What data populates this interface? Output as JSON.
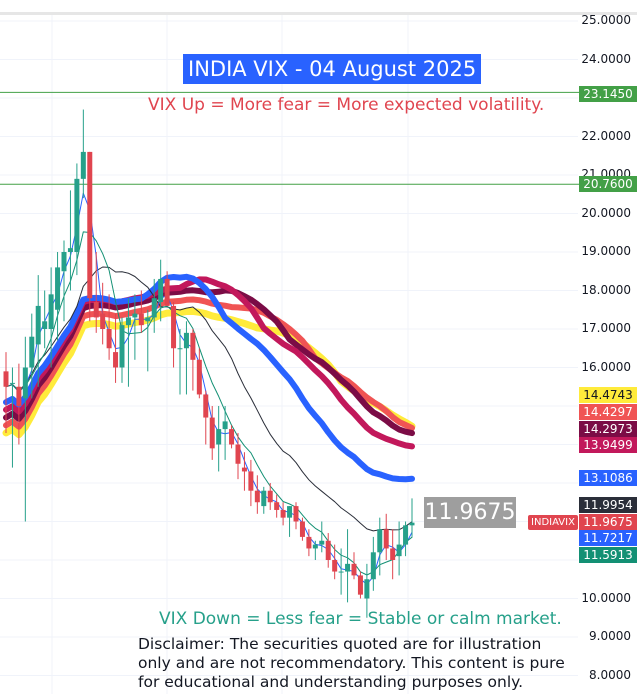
{
  "title": "INDIA VIX - 04 August 2025",
  "annotations": {
    "up_note": "VIX Up = More fear = More expected volatility.",
    "down_note": "VIX Down = Less fear = Stable or calm market.",
    "disclaimer_lines": [
      "Disclaimer: The securities quoted are for illustration",
      "only and are not recommendatory. This content is pure",
      "for educational and understanding purposes only."
    ]
  },
  "symbol": "INDIAVIX",
  "last_price": "11.9675",
  "price_axis": {
    "ticks": [
      "25.0000",
      "24.0000",
      "22.0000",
      "21.0000",
      "20.0000",
      "19.0000",
      "18.0000",
      "17.0000",
      "16.0000",
      "10.0000",
      "9.0000",
      "8.0000"
    ]
  },
  "price_tags": [
    {
      "label": "23.1450",
      "color": "#43a047",
      "text_color": "#ffffff",
      "name": "resistance-level-tag"
    },
    {
      "label": "20.7600",
      "color": "#43a047",
      "text_color": "#ffffff",
      "name": "support-level-tag"
    },
    {
      "label": "14.4743",
      "color": "#ffeb3b",
      "text_color": "#131722",
      "name": "ma-yellow-tag"
    },
    {
      "label": "14.4297",
      "color": "#f05454",
      "text_color": "#ffffff",
      "name": "ma-coral-tag"
    },
    {
      "label": "14.2973",
      "color": "#7b0c46",
      "text_color": "#ffffff",
      "name": "ma-darkmaroon-tag"
    },
    {
      "label": "13.9499",
      "color": "#c2185b",
      "text_color": "#ffffff",
      "name": "ma-crimson-tag"
    },
    {
      "label": "13.1086",
      "color": "#2962ff",
      "text_color": "#ffffff",
      "name": "ma-blue-tag"
    },
    {
      "label": "11.9954",
      "color": "#2a2e39",
      "text_color": "#ffffff",
      "name": "ma-black-tag"
    },
    {
      "label": "11.9675",
      "color": "#e0454f",
      "text_color": "#ffffff",
      "name": "last-price-tag"
    },
    {
      "label": "11.7217",
      "color": "#2962ff",
      "text_color": "#ffffff",
      "name": "ma-thin-blue-tag"
    },
    {
      "label": "11.5913",
      "color": "#139074",
      "text_color": "#ffffff",
      "name": "ma-teal-tag"
    }
  ],
  "colors": {
    "up_candle": "#26a08a",
    "down_candle": "#e0454f",
    "horizontal_line": "#43a047",
    "grid": "#f0f3fa"
  },
  "chart_data": {
    "type": "candlestick",
    "title": "INDIA VIX - 04 August 2025",
    "xlabel": "",
    "ylabel": "",
    "ylim": [
      7.6,
      25.5
    ],
    "grid": true,
    "legend": "price-scale tags on right axis",
    "horizontal_levels": [
      23.145,
      20.76
    ],
    "last_value": 11.9675,
    "moving_averages_last": {
      "yellow": 14.4743,
      "coral": 14.4297,
      "dark_maroon": 14.2973,
      "crimson": 13.9499,
      "thick_blue": 13.1086,
      "black_thin": 11.9954,
      "thin_blue": 11.7217,
      "teal_thin": 11.5913
    },
    "candles": [
      {
        "o": 15.9,
        "h": 16.4,
        "l": 14.3,
        "c": 15.5
      },
      {
        "o": 15.6,
        "h": 16.0,
        "l": 13.4,
        "c": 15.6
      },
      {
        "o": 15.5,
        "h": 16.1,
        "l": 14.0,
        "c": 15.0
      },
      {
        "o": 15.2,
        "h": 16.8,
        "l": 12.0,
        "c": 16.0
      },
      {
        "o": 16.0,
        "h": 17.4,
        "l": 15.2,
        "c": 16.8
      },
      {
        "o": 16.6,
        "h": 18.4,
        "l": 15.5,
        "c": 17.6
      },
      {
        "o": 17.0,
        "h": 18.0,
        "l": 16.5,
        "c": 17.2
      },
      {
        "o": 17.0,
        "h": 18.6,
        "l": 16.0,
        "c": 17.9
      },
      {
        "o": 17.5,
        "h": 19.0,
        "l": 16.7,
        "c": 18.6
      },
      {
        "o": 18.5,
        "h": 19.3,
        "l": 17.2,
        "c": 19.0
      },
      {
        "o": 19.0,
        "h": 20.6,
        "l": 18.0,
        "c": 19.1
      },
      {
        "o": 19.0,
        "h": 21.3,
        "l": 18.4,
        "c": 20.9
      },
      {
        "o": 20.9,
        "h": 22.7,
        "l": 20.4,
        "c": 21.6
      },
      {
        "o": 21.6,
        "h": 21.6,
        "l": 17.2,
        "c": 17.8
      },
      {
        "o": 17.7,
        "h": 19.0,
        "l": 16.9,
        "c": 17.3
      },
      {
        "o": 17.4,
        "h": 18.2,
        "l": 16.6,
        "c": 17.0
      },
      {
        "o": 17.0,
        "h": 17.9,
        "l": 16.2,
        "c": 16.5
      },
      {
        "o": 16.4,
        "h": 17.4,
        "l": 15.6,
        "c": 16.0
      },
      {
        "o": 16.0,
        "h": 17.3,
        "l": 15.6,
        "c": 17.1
      },
      {
        "o": 17.1,
        "h": 17.8,
        "l": 15.5,
        "c": 17.3
      },
      {
        "o": 17.3,
        "h": 17.9,
        "l": 16.2,
        "c": 17.4
      },
      {
        "o": 17.4,
        "h": 18.0,
        "l": 16.9,
        "c": 17.1
      },
      {
        "o": 17.2,
        "h": 17.5,
        "l": 15.9,
        "c": 17.3
      },
      {
        "o": 17.3,
        "h": 18.3,
        "l": 16.9,
        "c": 17.8
      },
      {
        "o": 17.7,
        "h": 18.8,
        "l": 17.2,
        "c": 18.3
      },
      {
        "o": 18.3,
        "h": 18.5,
        "l": 17.6,
        "c": 17.6
      },
      {
        "o": 17.6,
        "h": 17.7,
        "l": 16.0,
        "c": 16.5
      },
      {
        "o": 16.5,
        "h": 17.0,
        "l": 15.3,
        "c": 16.5
      },
      {
        "o": 16.5,
        "h": 17.2,
        "l": 15.3,
        "c": 16.9
      },
      {
        "o": 16.9,
        "h": 17.0,
        "l": 15.4,
        "c": 16.2
      },
      {
        "o": 16.2,
        "h": 16.5,
        "l": 15.2,
        "c": 15.3
      },
      {
        "o": 15.3,
        "h": 15.4,
        "l": 14.0,
        "c": 14.7
      },
      {
        "o": 14.7,
        "h": 15.0,
        "l": 13.6,
        "c": 13.9
      },
      {
        "o": 14.0,
        "h": 15.0,
        "l": 13.3,
        "c": 14.4
      },
      {
        "o": 14.4,
        "h": 15.0,
        "l": 13.6,
        "c": 14.6
      },
      {
        "o": 14.4,
        "h": 14.5,
        "l": 13.9,
        "c": 14.0
      },
      {
        "o": 14.0,
        "h": 14.3,
        "l": 13.1,
        "c": 13.5
      },
      {
        "o": 13.4,
        "h": 13.8,
        "l": 12.8,
        "c": 13.3
      },
      {
        "o": 13.3,
        "h": 13.6,
        "l": 12.4,
        "c": 12.8
      },
      {
        "o": 12.8,
        "h": 13.2,
        "l": 12.2,
        "c": 12.5
      },
      {
        "o": 12.4,
        "h": 12.9,
        "l": 12.2,
        "c": 12.8
      },
      {
        "o": 12.8,
        "h": 13.0,
        "l": 12.3,
        "c": 12.5
      },
      {
        "o": 12.5,
        "h": 12.7,
        "l": 12.1,
        "c": 12.3
      },
      {
        "o": 12.3,
        "h": 12.5,
        "l": 11.9,
        "c": 12.1
      },
      {
        "o": 12.1,
        "h": 12.4,
        "l": 11.6,
        "c": 12.4
      },
      {
        "o": 12.4,
        "h": 12.5,
        "l": 11.8,
        "c": 12.0
      },
      {
        "o": 12.0,
        "h": 12.1,
        "l": 11.5,
        "c": 11.6
      },
      {
        "o": 11.6,
        "h": 11.8,
        "l": 11.1,
        "c": 11.3
      },
      {
        "o": 11.3,
        "h": 11.5,
        "l": 11.0,
        "c": 11.4
      },
      {
        "o": 11.4,
        "h": 12.0,
        "l": 11.2,
        "c": 11.5
      },
      {
        "o": 11.5,
        "h": 11.7,
        "l": 10.8,
        "c": 11.0
      },
      {
        "o": 11.0,
        "h": 11.4,
        "l": 10.5,
        "c": 10.7
      },
      {
        "o": 10.7,
        "h": 11.3,
        "l": 10.1,
        "c": 10.7
      },
      {
        "o": 10.7,
        "h": 11.8,
        "l": 9.9,
        "c": 10.9
      },
      {
        "o": 10.9,
        "h": 11.2,
        "l": 10.5,
        "c": 10.6
      },
      {
        "o": 10.6,
        "h": 10.7,
        "l": 10.0,
        "c": 10.1
      },
      {
        "o": 10.0,
        "h": 10.9,
        "l": 9.5,
        "c": 10.5
      },
      {
        "o": 10.5,
        "h": 11.6,
        "l": 10.2,
        "c": 11.2
      },
      {
        "o": 11.2,
        "h": 12.1,
        "l": 10.6,
        "c": 11.8
      },
      {
        "o": 11.8,
        "h": 12.2,
        "l": 11.0,
        "c": 11.3
      },
      {
        "o": 11.3,
        "h": 11.8,
        "l": 10.5,
        "c": 11.0
      },
      {
        "o": 11.1,
        "h": 12.0,
        "l": 10.6,
        "c": 11.4
      },
      {
        "o": 11.4,
        "h": 12.0,
        "l": 11.1,
        "c": 11.9
      },
      {
        "o": 11.9,
        "h": 12.6,
        "l": 11.6,
        "c": 11.97
      }
    ]
  }
}
